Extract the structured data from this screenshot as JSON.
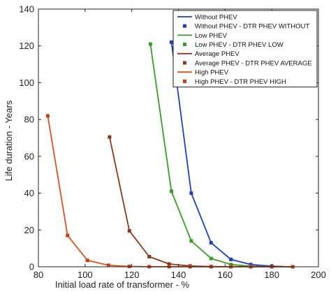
{
  "chart_data": {
    "type": "line",
    "title": "",
    "xlabel": "Initial load rate of transformer - %",
    "ylabel": "Life duration - Years",
    "xlim": [
      80,
      200
    ],
    "ylim": [
      0,
      140
    ],
    "xticks": [
      80,
      100,
      120,
      140,
      160,
      180,
      200
    ],
    "yticks": [
      0,
      20,
      40,
      60,
      80,
      100,
      120,
      140
    ],
    "grid": false,
    "legend_position": "top-right",
    "series": [
      {
        "name": "Without PHEV",
        "kind": "line",
        "color": "#1f3fbf",
        "x": [
          137,
          145.5,
          154,
          162.5,
          171,
          180,
          185
        ],
        "y": [
          122,
          40,
          13,
          4,
          1.2,
          0.3,
          0.1
        ]
      },
      {
        "name": "Without PHEV - DTR PHEV WITHOUT",
        "kind": "marker",
        "color": "#1f3fbf",
        "x": [
          137,
          145.5,
          154,
          162.5,
          171,
          180
        ],
        "y": [
          122,
          40,
          13,
          4,
          1.2,
          0.3
        ]
      },
      {
        "name": "Low PHEV",
        "kind": "line",
        "color": "#3a9a2a",
        "x": [
          128,
          137,
          145.5,
          154,
          162.5,
          171,
          176
        ],
        "y": [
          121,
          41,
          14,
          4.5,
          1.2,
          0.3,
          0.1
        ]
      },
      {
        "name": "Low PHEV - DTR PHEV LOW",
        "kind": "marker",
        "color": "#3a9a2a",
        "x": [
          128,
          137,
          145.5,
          154,
          162.5,
          171
        ],
        "y": [
          121,
          41,
          14,
          4.5,
          1.2,
          0.3
        ]
      },
      {
        "name": "Average PHEV",
        "kind": "line",
        "color": "#8a3a1a",
        "x": [
          110.5,
          119,
          127.5,
          136,
          145,
          154,
          162.5,
          171,
          180,
          189
        ],
        "y": [
          70.5,
          19.5,
          5.5,
          1.5,
          0.4,
          0.1,
          0.05,
          0.02,
          0.01,
          0.01
        ]
      },
      {
        "name": "Average PHEV - DTR PHEV AVERAGE",
        "kind": "marker",
        "color": "#8a3a1a",
        "x": [
          110.5,
          119,
          127.5,
          136,
          145,
          154,
          162.5,
          171,
          180,
          189
        ],
        "y": [
          70.5,
          19.5,
          5.5,
          1.5,
          0.4,
          0.1,
          0.05,
          0.02,
          0.01,
          0.01
        ]
      },
      {
        "name": "High PHEV",
        "kind": "line",
        "color": "#d9541c",
        "x": [
          84,
          92.5,
          101,
          110,
          119,
          127.5,
          136,
          145,
          154,
          162.5,
          171,
          180,
          189
        ],
        "y": [
          82,
          17,
          3.5,
          0.8,
          0.2,
          0.05,
          0.02,
          0.01,
          0.01,
          0.01,
          0.01,
          0.01,
          0.01
        ]
      },
      {
        "name": "High PHEV - DTR PHEV HIGH",
        "kind": "marker",
        "color": "#c0401a",
        "x": [
          84,
          92.5,
          101,
          110,
          119,
          127.5,
          136,
          145,
          154,
          162.5,
          171,
          180,
          189
        ],
        "y": [
          82,
          17,
          3.5,
          0.8,
          0.2,
          0.05,
          0.02,
          0.01,
          0.01,
          0.01,
          0.01,
          0.01,
          0.01
        ]
      }
    ]
  }
}
